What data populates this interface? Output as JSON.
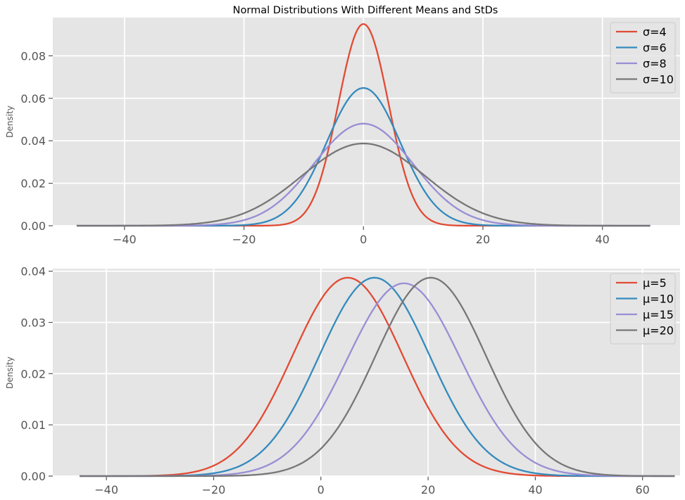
{
  "title": "Normal Distributions With Different Means and StDs",
  "colors": {
    "background": "#E5E5E5",
    "grid": "#FFFFFF",
    "red": "#E24A33",
    "blue": "#348ABD",
    "purple": "#988ED5",
    "gray": "#777777"
  },
  "chart_data": [
    {
      "type": "line",
      "title": "Normal Distributions With Different Means and StDs",
      "xlabel": "",
      "ylabel": "Density",
      "xlim": [
        -52,
        53
      ],
      "ylim": [
        0,
        0.098
      ],
      "x_range": [
        -48,
        48
      ],
      "xticks": [
        -40,
        -20,
        0,
        20,
        40
      ],
      "xtick_labels": [
        "−40",
        "−20",
        "0",
        "20",
        "40"
      ],
      "yticks": [
        0,
        0.02,
        0.04,
        0.06,
        0.08
      ],
      "ytick_labels": [
        "0.00",
        "0.02",
        "0.04",
        "0.06",
        "0.08"
      ],
      "grid": true,
      "legend": "top-right",
      "series": [
        {
          "name": "σ=4",
          "mu": 0,
          "sigma": 4.2,
          "color": "#E24A33"
        },
        {
          "name": "σ=6",
          "mu": 0,
          "sigma": 6.15,
          "color": "#348ABD"
        },
        {
          "name": "σ=8",
          "mu": 0,
          "sigma": 8.3,
          "color": "#988ED5"
        },
        {
          "name": "σ=10",
          "mu": 0,
          "sigma": 10.3,
          "color": "#777777"
        }
      ]
    },
    {
      "type": "line",
      "title": "",
      "xlabel": "",
      "ylabel": "Density",
      "xlim": [
        -50,
        67
      ],
      "ylim": [
        0,
        0.0405
      ],
      "x_range": [
        -45,
        66
      ],
      "xticks": [
        -40,
        -20,
        0,
        20,
        40,
        60
      ],
      "xtick_labels": [
        "−40",
        "−20",
        "0",
        "20",
        "40",
        "60"
      ],
      "yticks": [
        0,
        0.01,
        0.02,
        0.03,
        0.04
      ],
      "ytick_labels": [
        "0.00",
        "0.01",
        "0.02",
        "0.03",
        "0.04"
      ],
      "grid": true,
      "legend": "top-right",
      "series": [
        {
          "name": "μ=5",
          "mu": 5,
          "sigma": 10.3,
          "color": "#E24A33"
        },
        {
          "name": "μ=10",
          "mu": 10,
          "sigma": 10.3,
          "color": "#348ABD"
        },
        {
          "name": "μ=15",
          "mu": 15.5,
          "sigma": 10.6,
          "color": "#988ED5"
        },
        {
          "name": "μ=20",
          "mu": 20.5,
          "sigma": 10.3,
          "color": "#777777"
        }
      ]
    }
  ]
}
